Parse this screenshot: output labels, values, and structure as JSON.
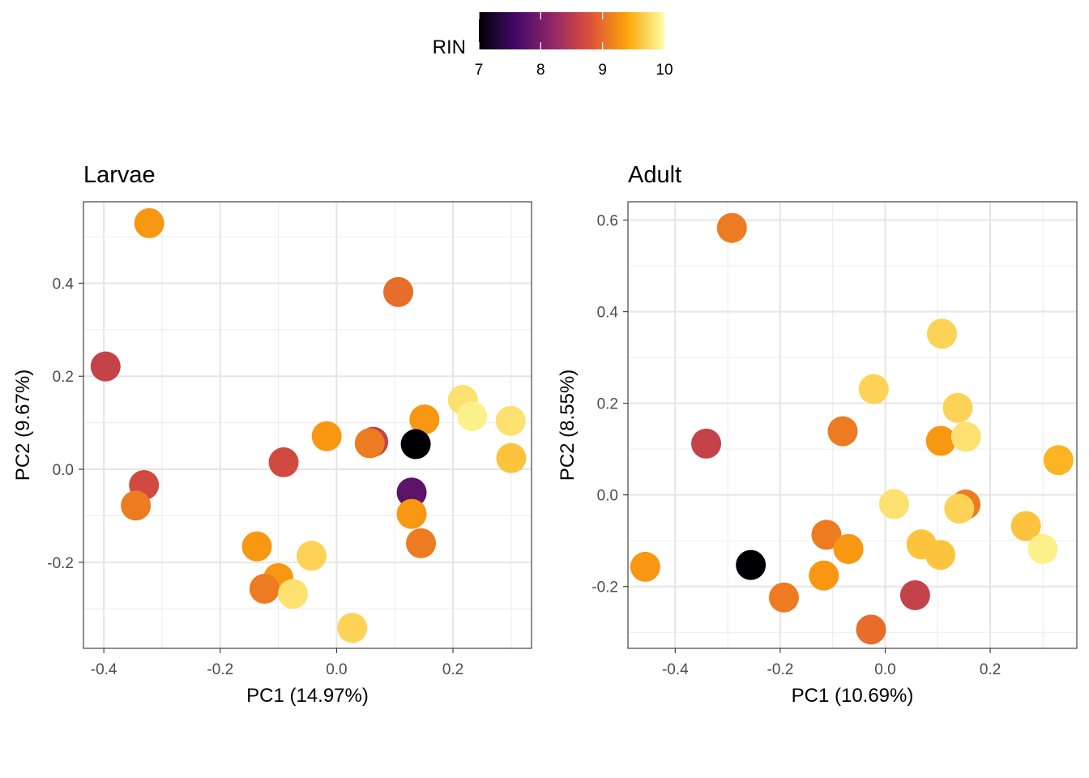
{
  "legend": {
    "title": "RIN",
    "min": 7,
    "max": 10,
    "breaks": [
      "7",
      "8",
      "9",
      "10"
    ],
    "colors": [
      "#000004",
      "#420a68",
      "#932667",
      "#dd513a",
      "#fca50a",
      "#fcffa4"
    ]
  },
  "chart_data": [
    {
      "type": "scatter",
      "title": "Larvae",
      "xlabel": "PC1 (14.97%)",
      "ylabel": "PC2 (9.67%)",
      "xlim": [
        -0.435,
        0.335
      ],
      "ylim": [
        -0.385,
        0.575
      ],
      "xticks": [
        -0.4,
        -0.2,
        0.0,
        0.2
      ],
      "xtick_labels": [
        "-0.4",
        "-0.2",
        "0.0",
        "0.2"
      ],
      "yticks": [
        -0.2,
        0.0,
        0.2,
        0.4
      ],
      "ytick_labels": [
        "-0.2",
        "0.0",
        "0.2",
        "0.4"
      ],
      "grid": true,
      "points": [
        {
          "x": -0.322,
          "y": 0.529,
          "rin": 9.3
        },
        {
          "x": 0.106,
          "y": 0.381,
          "rin": 9.0
        },
        {
          "x": -0.397,
          "y": 0.221,
          "rin": 8.6
        },
        {
          "x": 0.217,
          "y": 0.149,
          "rin": 9.8
        },
        {
          "x": 0.233,
          "y": 0.114,
          "rin": 9.9
        },
        {
          "x": 0.299,
          "y": 0.104,
          "rin": 9.8
        },
        {
          "x": 0.151,
          "y": 0.107,
          "rin": 9.3
        },
        {
          "x": -0.017,
          "y": 0.071,
          "rin": 9.3
        },
        {
          "x": 0.063,
          "y": 0.059,
          "rin": 8.6
        },
        {
          "x": 0.057,
          "y": 0.056,
          "rin": 9.1
        },
        {
          "x": 0.136,
          "y": 0.054,
          "rin": 7.0
        },
        {
          "x": 0.3,
          "y": 0.024,
          "rin": 9.6
        },
        {
          "x": -0.091,
          "y": 0.015,
          "rin": 8.7
        },
        {
          "x": -0.331,
          "y": -0.034,
          "rin": 8.7
        },
        {
          "x": -0.345,
          "y": -0.078,
          "rin": 9.1
        },
        {
          "x": 0.129,
          "y": -0.05,
          "rin": 7.8
        },
        {
          "x": 0.129,
          "y": -0.096,
          "rin": 9.3
        },
        {
          "x": 0.145,
          "y": -0.159,
          "rin": 9.1
        },
        {
          "x": -0.137,
          "y": -0.166,
          "rin": 9.3
        },
        {
          "x": -0.043,
          "y": -0.186,
          "rin": 9.7
        },
        {
          "x": -0.1,
          "y": -0.234,
          "rin": 9.3
        },
        {
          "x": -0.124,
          "y": -0.257,
          "rin": 9.1
        },
        {
          "x": -0.075,
          "y": -0.268,
          "rin": 9.8
        },
        {
          "x": 0.027,
          "y": -0.341,
          "rin": 9.7
        }
      ]
    },
    {
      "type": "scatter",
      "title": "Adult",
      "xlabel": "PC1 (10.69%)",
      "ylabel": "PC2 (8.55%)",
      "xlim": [
        -0.49,
        0.365
      ],
      "ylim": [
        -0.335,
        0.64
      ],
      "xticks": [
        -0.4,
        -0.2,
        0.0,
        0.2
      ],
      "xtick_labels": [
        "-0.4",
        "-0.2",
        "0.0",
        "0.2"
      ],
      "yticks": [
        -0.2,
        0.0,
        0.2,
        0.4,
        0.6
      ],
      "ytick_labels": [
        "-0.2",
        "0.0",
        "0.2",
        "0.4",
        "0.6"
      ],
      "grid": true,
      "points": [
        {
          "x": -0.292,
          "y": 0.583,
          "rin": 9.1
        },
        {
          "x": 0.108,
          "y": 0.352,
          "rin": 9.7
        },
        {
          "x": -0.022,
          "y": 0.231,
          "rin": 9.7
        },
        {
          "x": 0.138,
          "y": 0.19,
          "rin": 9.7
        },
        {
          "x": -0.081,
          "y": 0.139,
          "rin": 9.1
        },
        {
          "x": 0.106,
          "y": 0.118,
          "rin": 9.3
        },
        {
          "x": 0.154,
          "y": 0.127,
          "rin": 9.8
        },
        {
          "x": -0.341,
          "y": 0.112,
          "rin": 8.6
        },
        {
          "x": 0.33,
          "y": 0.076,
          "rin": 9.5
        },
        {
          "x": 0.153,
          "y": -0.021,
          "rin": 9.1
        },
        {
          "x": 0.017,
          "y": -0.02,
          "rin": 9.8
        },
        {
          "x": 0.141,
          "y": -0.03,
          "rin": 9.7
        },
        {
          "x": 0.268,
          "y": -0.068,
          "rin": 9.6
        },
        {
          "x": 0.3,
          "y": -0.118,
          "rin": 9.9
        },
        {
          "x": -0.112,
          "y": -0.087,
          "rin": 9.1
        },
        {
          "x": -0.07,
          "y": -0.118,
          "rin": 9.3
        },
        {
          "x": 0.069,
          "y": -0.108,
          "rin": 9.6
        },
        {
          "x": 0.105,
          "y": -0.131,
          "rin": 9.6
        },
        {
          "x": -0.457,
          "y": -0.157,
          "rin": 9.3
        },
        {
          "x": -0.256,
          "y": -0.153,
          "rin": 7.0
        },
        {
          "x": -0.117,
          "y": -0.176,
          "rin": 9.3
        },
        {
          "x": 0.057,
          "y": -0.219,
          "rin": 8.6
        },
        {
          "x": -0.193,
          "y": -0.224,
          "rin": 9.1
        },
        {
          "x": -0.027,
          "y": -0.294,
          "rin": 9.0
        }
      ]
    }
  ]
}
